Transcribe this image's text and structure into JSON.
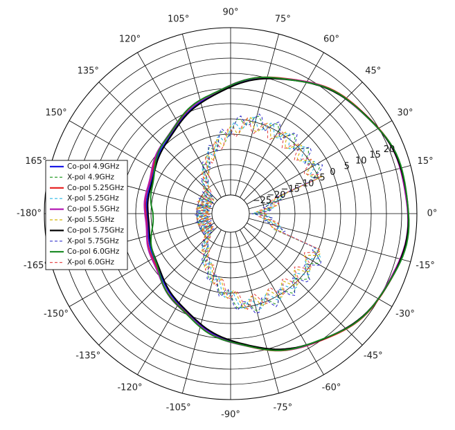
{
  "chart_data": {
    "type": "polar-line",
    "title": "",
    "angle_unit": "deg",
    "angle_ticks": [
      90,
      75,
      60,
      45,
      30,
      15,
      0,
      -15,
      -30,
      -45,
      -60,
      -75,
      -90,
      -105,
      -120,
      -135,
      -150,
      -165,
      -180,
      165,
      150,
      135,
      120,
      105
    ],
    "angle_tick_labels": [
      "90°",
      "75°",
      "60°",
      "45°",
      "30°",
      "15°",
      "0°",
      "-15°",
      "-30°",
      "-45°",
      "-60°",
      "-75°",
      "-90°",
      "-105°",
      "-120°",
      "-135°",
      "-150°",
      "-165°",
      "-180°",
      "165°",
      "150°",
      "135°",
      "120°",
      "105°"
    ],
    "rlim": [
      -30,
      25
    ],
    "r_ticks": [
      -25,
      -20,
      -15,
      -10,
      -5,
      0,
      5,
      10,
      15,
      20
    ],
    "r_tick_labels": [
      "−25",
      "−20",
      "−15",
      "−10",
      "−5",
      "0",
      "5",
      "10",
      "15",
      "20"
    ],
    "grid": true,
    "legend_position": "left",
    "series": [
      {
        "name": "Co-pol 4.9GHz",
        "color": "#1a1ae6",
        "dash": "solid",
        "pattern": "co",
        "peak": 22.2,
        "back_gain": -8.6,
        "narrow": 0.0,
        "ripple": 0.25
      },
      {
        "name": "X-pol 4.9GHz",
        "color": "#2e9e2e",
        "dash": "dashed",
        "pattern": "x",
        "level": -4.6,
        "ripple": 1.8
      },
      {
        "name": "Co-pol 5.25GHz",
        "color": "#e61a1a",
        "dash": "solid",
        "pattern": "co",
        "peak": 22.3,
        "back_gain": -8.2,
        "narrow": 0.02,
        "ripple": 0.3
      },
      {
        "name": "X-pol 5.25GHz",
        "color": "#29b6e6",
        "dash": "dashed",
        "pattern": "x",
        "level": -5.4,
        "ripple": 2.0
      },
      {
        "name": "Co-pol 5.5GHz",
        "color": "#b31ab3",
        "dash": "solid",
        "pattern": "co",
        "peak": 22.0,
        "back_gain": -8.0,
        "narrow": 0.03,
        "ripple": 0.3
      },
      {
        "name": "X-pol 5.5GHz",
        "color": "#d4b400",
        "dash": "dashed",
        "pattern": "x",
        "level": -6.0,
        "ripple": 2.2
      },
      {
        "name": "Co-pol 5.75GHz",
        "color": "#000000",
        "dash": "solid",
        "pattern": "co",
        "peak": 22.2,
        "back_gain": -9.0,
        "narrow": 0.0,
        "ripple": 0.2
      },
      {
        "name": "X-pol 5.75GHz",
        "color": "#3333cc",
        "dash": "dashed",
        "pattern": "x",
        "level": -4.4,
        "ripple": 2.4
      },
      {
        "name": "Co-pol 6.0GHz",
        "color": "#15871f",
        "dash": "solid",
        "pattern": "co",
        "peak": 22.4,
        "back_gain": -10.5,
        "narrow": 0.22,
        "ripple": 0.35
      },
      {
        "name": "X-pol 6.0GHz",
        "color": "#e64d4d",
        "dash": "dashed",
        "pattern": "x",
        "level": -6.5,
        "ripple": 2.3
      }
    ]
  }
}
